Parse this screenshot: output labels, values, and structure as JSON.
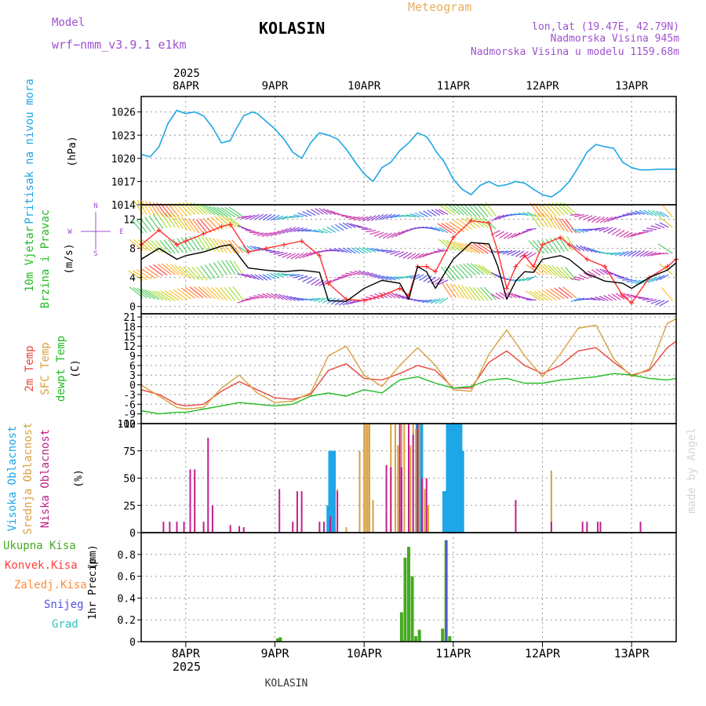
{
  "header": {
    "model_label": "Model",
    "model_name": "wrf−nmm_v3.9.1 e1km",
    "station": "KOLASIN",
    "product": "Meteogram",
    "lonlat": "lon,lat (19.47E, 42.79N)",
    "elevation": "Nadmorska Visina 945m",
    "model_elevation": "Nadmorska Visina u modelu 1159.68m",
    "credit": "made by Angel",
    "footer_station": "KOLASIN"
  },
  "colors": {
    "pressure": "#1ea6e6",
    "wind_speed": "#000000",
    "gust": "#ff3030",
    "temp_2m": "#e8483c",
    "temp_sfc": "#d8a040",
    "dewpoint": "#22bb22",
    "cloud_high": "#1ea6e6",
    "cloud_mid": "#d8a040",
    "cloud_low": "#c0208c",
    "precip_total": "#44aa22",
    "precip_conv": "#ff4040",
    "precip_frz": "#ff8c3c",
    "precip_snow": "#5050e0",
    "precip_grad": "#30c0c0",
    "model_purple": "#a050d0",
    "product_gold": "#e8b060"
  },
  "time_axis": {
    "year": "2025",
    "ticks": [
      "8APR",
      "9APR",
      "10APR",
      "11APR",
      "12APR",
      "13APR"
    ],
    "start_day": 7.5,
    "end_day": 13.5
  },
  "panels": {
    "pressure": {
      "ylabel": "Pritisak na nivou mora",
      "unit": "(hPa)"
    },
    "wind": {
      "ylabel_1": "10m Vjetar",
      "ylabel_2": "Brzina i Pravac",
      "unit": "(m/s)",
      "compass_n": "N",
      "compass_s": "S",
      "compass_w": "W",
      "compass_e": "E"
    },
    "temp": {
      "label_2m": "2m Temp",
      "label_sfc": "SFC Temp",
      "label_dewpt": "dewpt Temp",
      "unit": "(C)"
    },
    "cloud": {
      "label_high": "Visoka Oblacnost",
      "label_mid": "Srednja Oblacnost",
      "label_low": "Niska Oblacnost",
      "unit": "(%)"
    },
    "precip": {
      "label_total": "Ukupna Kisa",
      "label_conv": "Konvek.Kisa",
      "label_frz": "Zaledj.Kisa",
      "label_snow": "Snijeg",
      "label_grad": "Grad",
      "label_1hr": "1hr Precip",
      "unit": "(mm)"
    }
  },
  "chart_data": [
    {
      "type": "line",
      "panel": "pressure",
      "ylim": [
        1014,
        1028
      ],
      "yticks": [
        "1014",
        "1017",
        "1020",
        "1023",
        "1026"
      ],
      "grid": true,
      "series": [
        {
          "name": "Pritisak na nivou mora",
          "x": [
            7.5,
            7.6,
            7.7,
            7.8,
            7.9,
            8.0,
            8.1,
            8.2,
            8.3,
            8.4,
            8.5,
            8.55,
            8.65,
            8.75,
            8.8,
            8.9,
            9.0,
            9.1,
            9.2,
            9.3,
            9.4,
            9.5,
            9.6,
            9.7,
            9.8,
            9.9,
            10.0,
            10.1,
            10.2,
            10.3,
            10.4,
            10.5,
            10.6,
            10.7,
            10.75,
            10.8,
            10.9,
            11.0,
            11.1,
            11.2,
            11.3,
            11.4,
            11.5,
            11.6,
            11.7,
            11.8,
            11.9,
            12.0,
            12.1,
            12.2,
            12.3,
            12.4,
            12.5,
            12.6,
            12.7,
            12.8,
            12.9,
            13.0,
            13.1,
            13.2,
            13.3,
            13.4,
            13.5
          ],
          "values": [
            1020.5,
            1020.2,
            1021.5,
            1024.5,
            1026.2,
            1025.8,
            1026.0,
            1025.5,
            1024.0,
            1022.0,
            1022.3,
            1023.5,
            1025.5,
            1026.0,
            1025.8,
            1024.8,
            1023.8,
            1022.5,
            1020.8,
            1020.0,
            1022.0,
            1023.3,
            1023.0,
            1022.5,
            1021.2,
            1019.5,
            1018.0,
            1017.0,
            1018.8,
            1019.5,
            1021.0,
            1022.0,
            1023.3,
            1022.8,
            1022.0,
            1021.0,
            1019.5,
            1017.3,
            1016.0,
            1015.3,
            1016.5,
            1017.0,
            1016.4,
            1016.6,
            1017.0,
            1016.8,
            1016.0,
            1015.3,
            1015.0,
            1015.8,
            1017.0,
            1018.8,
            1020.8,
            1021.8,
            1021.5,
            1021.3,
            1019.5,
            1018.8,
            1018.5,
            1018.5,
            1018.6,
            1018.6,
            1018.6
          ]
        }
      ]
    },
    {
      "type": "line",
      "panel": "wind",
      "ylim": [
        -1,
        14
      ],
      "yticks": [
        "0",
        "4",
        "8",
        "12"
      ],
      "grid": true,
      "series": [
        {
          "name": "wind_speed",
          "x": [
            7.5,
            7.7,
            7.9,
            8.0,
            8.2,
            8.4,
            8.5,
            8.7,
            8.9,
            9.1,
            9.3,
            9.5,
            9.6,
            9.8,
            10.0,
            10.2,
            10.4,
            10.5,
            10.6,
            10.7,
            10.8,
            11.0,
            11.2,
            11.4,
            11.5,
            11.6,
            11.7,
            11.8,
            11.9,
            12.0,
            12.2,
            12.3,
            12.5,
            12.7,
            12.9,
            13.0,
            13.2,
            13.4,
            13.5
          ],
          "values": [
            6.5,
            8.0,
            6.5,
            7.0,
            7.5,
            8.3,
            8.5,
            5.3,
            5.0,
            4.8,
            5.0,
            4.7,
            0.8,
            0.7,
            2.5,
            3.6,
            3.2,
            1.0,
            5.5,
            4.8,
            2.5,
            6.5,
            8.8,
            8.6,
            5.5,
            1.0,
            3.5,
            4.8,
            4.7,
            6.5,
            7.0,
            6.5,
            4.5,
            3.5,
            3.2,
            2.5,
            4.0,
            5.0,
            6.0
          ]
        },
        {
          "name": "gust",
          "x": [
            7.5,
            7.7,
            7.9,
            8.0,
            8.2,
            8.4,
            8.5,
            8.7,
            8.9,
            9.1,
            9.3,
            9.5,
            9.6,
            9.8,
            10.0,
            10.2,
            10.4,
            10.5,
            10.6,
            10.7,
            10.8,
            11.0,
            11.2,
            11.4,
            11.5,
            11.6,
            11.7,
            11.8,
            11.9,
            12.0,
            12.2,
            12.3,
            12.5,
            12.7,
            12.9,
            13.0,
            13.2,
            13.4,
            13.5
          ],
          "values": [
            8.5,
            10.5,
            8.5,
            9.0,
            10.0,
            11.0,
            11.3,
            7.5,
            8.0,
            8.5,
            9.0,
            7.0,
            3.2,
            1.0,
            0.8,
            1.5,
            2.5,
            1.5,
            5.5,
            5.5,
            4.8,
            9.5,
            11.8,
            11.5,
            7.5,
            2.5,
            5.5,
            7.0,
            5.5,
            8.5,
            9.5,
            8.5,
            6.5,
            5.5,
            1.5,
            0.5,
            4.0,
            5.5,
            6.5
          ]
        }
      ]
    },
    {
      "type": "line",
      "panel": "temp",
      "ylim": [
        -12,
        22
      ],
      "yticks": [
        "-12",
        "-9",
        "-6",
        "-3",
        "0",
        "3",
        "6",
        "9",
        "12",
        "15",
        "18",
        "21"
      ],
      "grid": true,
      "series": [
        {
          "name": "2m Temp",
          "x": [
            7.5,
            7.7,
            7.9,
            8.0,
            8.2,
            8.4,
            8.6,
            8.8,
            9.0,
            9.2,
            9.4,
            9.6,
            9.8,
            10.0,
            10.2,
            10.4,
            10.6,
            10.8,
            11.0,
            11.2,
            11.4,
            11.6,
            11.8,
            12.0,
            12.2,
            12.4,
            12.6,
            12.8,
            13.0,
            13.2,
            13.4,
            13.5
          ],
          "values": [
            -1.5,
            -3.0,
            -6.0,
            -6.5,
            -6.0,
            -2.0,
            1.0,
            -1.5,
            -4.0,
            -4.5,
            -3.0,
            4.5,
            6.5,
            2.0,
            1.5,
            3.5,
            6.0,
            4.5,
            -1.0,
            -1.0,
            7.0,
            10.5,
            6.0,
            3.5,
            6.0,
            10.5,
            11.5,
            7.0,
            3.0,
            4.5,
            11.5,
            13.5
          ]
        },
        {
          "name": "SFC Temp",
          "x": [
            7.5,
            7.7,
            7.9,
            8.0,
            8.2,
            8.4,
            8.6,
            8.8,
            9.0,
            9.2,
            9.4,
            9.6,
            9.8,
            10.0,
            10.2,
            10.4,
            10.6,
            10.8,
            11.0,
            11.2,
            11.4,
            11.6,
            11.8,
            12.0,
            12.2,
            12.4,
            12.6,
            12.8,
            13.0,
            13.2,
            13.4,
            13.5
          ],
          "values": [
            0.0,
            -3.5,
            -7.0,
            -7.5,
            -7.0,
            -1.0,
            3.0,
            -2.5,
            -5.5,
            -5.0,
            -2.5,
            9.0,
            12.0,
            3.0,
            -0.5,
            6.0,
            11.5,
            6.0,
            -1.5,
            -2.0,
            9.5,
            17.0,
            9.0,
            2.5,
            9.5,
            17.5,
            18.5,
            8.0,
            2.5,
            5.0,
            19.0,
            20.5
          ]
        },
        {
          "name": "dewpt Temp",
          "x": [
            7.5,
            7.7,
            7.9,
            8.0,
            8.2,
            8.4,
            8.6,
            8.8,
            9.0,
            9.2,
            9.4,
            9.6,
            9.8,
            10.0,
            10.2,
            10.4,
            10.6,
            10.8,
            11.0,
            11.2,
            11.4,
            11.6,
            11.8,
            12.0,
            12.2,
            12.4,
            12.6,
            12.8,
            13.0,
            13.2,
            13.4,
            13.5
          ],
          "values": [
            -8.0,
            -9.0,
            -8.5,
            -8.5,
            -7.5,
            -6.5,
            -5.5,
            -6.0,
            -6.5,
            -6.0,
            -3.5,
            -2.5,
            -3.5,
            -1.5,
            -2.5,
            1.5,
            2.5,
            0.5,
            -1.0,
            -0.5,
            1.5,
            2.0,
            0.5,
            0.5,
            1.5,
            2.0,
            2.5,
            3.5,
            3.0,
            2.0,
            1.5,
            2.0
          ]
        }
      ]
    },
    {
      "type": "bar",
      "panel": "cloud",
      "ylim": [
        0,
        100
      ],
      "yticks": [
        "0",
        "25",
        "50",
        "75",
        "100"
      ],
      "grid": true,
      "series": [
        {
          "name": "Visoka Oblacnost",
          "x": [
            9.6,
            9.62,
            9.64,
            9.66,
            10.6,
            10.62,
            10.64,
            10.9,
            10.92,
            10.94,
            10.96,
            10.98,
            11.0,
            11.02,
            11.04,
            11.06,
            11.08,
            11.1
          ],
          "values": [
            25,
            75,
            75,
            75,
            100,
            100,
            100,
            38,
            38,
            100,
            100,
            100,
            100,
            100,
            100,
            100,
            100,
            75
          ]
        },
        {
          "name": "Srednja Oblacnost",
          "x": [
            9.7,
            9.8,
            9.95,
            10.0,
            10.02,
            10.04,
            10.06,
            10.1,
            10.3,
            10.35,
            10.38,
            10.42,
            10.45,
            10.5,
            10.52,
            10.55,
            10.58,
            10.62,
            10.68,
            10.72,
            12.1
          ],
          "values": [
            40,
            5,
            75,
            100,
            100,
            100,
            100,
            30,
            100,
            100,
            80,
            100,
            100,
            100,
            80,
            100,
            95,
            100,
            40,
            25,
            57
          ]
        },
        {
          "name": "Niska Oblacnost",
          "x": [
            7.75,
            7.82,
            7.9,
            7.98,
            8.05,
            8.1,
            8.2,
            8.25,
            8.3,
            8.5,
            8.6,
            8.65,
            9.05,
            9.2,
            9.25,
            9.3,
            9.5,
            9.55,
            9.62,
            9.7,
            10.25,
            10.3,
            10.4,
            10.42,
            10.5,
            10.55,
            10.6,
            10.65,
            10.7,
            11.7,
            12.1,
            12.45,
            12.5,
            12.62,
            12.65,
            13.1
          ],
          "values": [
            10,
            10,
            10,
            10,
            58,
            58,
            10,
            87,
            25,
            7,
            6,
            5,
            40,
            10,
            38,
            38,
            10,
            10,
            15,
            38,
            62,
            60,
            100,
            60,
            100,
            90,
            100,
            50,
            50,
            30,
            10,
            10,
            10,
            10,
            10,
            10
          ]
        }
      ]
    },
    {
      "type": "bar",
      "panel": "precip",
      "ylim": [
        0,
        1.0
      ],
      "yticks": [
        "0",
        "0.2",
        "0.4",
        "0.6",
        "0.8"
      ],
      "grid": true,
      "series": [
        {
          "name": "Ukupna Kisa",
          "x": [
            9.03,
            9.06,
            10.42,
            10.46,
            10.5,
            10.54,
            10.58,
            10.62,
            10.88,
            10.92,
            10.96
          ],
          "values": [
            0.03,
            0.04,
            0.27,
            0.77,
            0.87,
            0.6,
            0.05,
            0.11,
            0.12,
            0.93,
            0.05
          ]
        },
        {
          "name": "Snijeg",
          "x": [
            10.92
          ],
          "values": [
            0.93
          ]
        }
      ]
    }
  ]
}
